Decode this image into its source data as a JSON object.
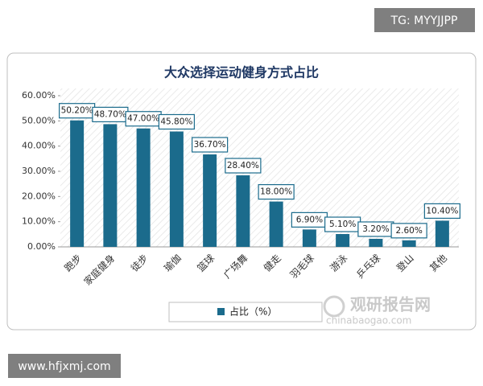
{
  "chart_data": {
    "type": "bar",
    "title": "大众选择运动健身方式占比",
    "categories": [
      "跑步",
      "家庭健身",
      "徒步",
      "瑜伽",
      "篮球",
      "广场舞",
      "健走",
      "羽毛球",
      "游泳",
      "乒乓球",
      "登山",
      "其他"
    ],
    "series": [
      {
        "name": "占比（%）",
        "color": "#1b6b8c",
        "values": [
          50.2,
          48.7,
          47.0,
          45.8,
          36.7,
          28.4,
          18.0,
          6.9,
          5.1,
          3.2,
          2.6,
          10.4
        ],
        "value_labels": [
          "50.20%",
          "48.70%",
          "47.00%",
          "45.80%",
          "36.70%",
          "28.40%",
          "18.00%",
          "6.90%",
          "5.10%",
          "3.20%",
          "2.60%",
          "10.40%"
        ]
      }
    ],
    "ylim": [
      0,
      60
    ],
    "yticks": [
      {
        "value": 0,
        "label": "0.00%"
      },
      {
        "value": 10,
        "label": "10.00%"
      },
      {
        "value": 20,
        "label": "20.00%"
      },
      {
        "value": 30,
        "label": "30.00%"
      },
      {
        "value": 40,
        "label": "40.00%"
      },
      {
        "value": 50,
        "label": "50.00%"
      },
      {
        "value": 60,
        "label": "60.00%"
      }
    ],
    "legend": "bottom"
  },
  "overlay": {
    "tag": "TG: MYYJJPP",
    "url": "www.hfjxmj.com"
  },
  "watermark": {
    "name": "观研报告网",
    "domain": "chinabaogao.com"
  }
}
